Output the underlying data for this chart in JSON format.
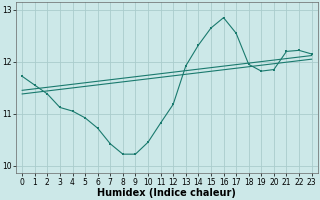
{
  "bg_color": "#cce8e8",
  "grid_color": "#aacccc",
  "line_color": "#1a7a6e",
  "xlabel": "Humidex (Indice chaleur)",
  "xlabel_fontsize": 7,
  "xlim": [
    -0.5,
    23.5
  ],
  "ylim": [
    9.85,
    13.15
  ],
  "yticks": [
    10,
    11,
    12,
    13
  ],
  "tick_fontsize": 5.5,
  "wavy_x": [
    0,
    1,
    2,
    3,
    4,
    5,
    6,
    7,
    8,
    9,
    10,
    11,
    12,
    13,
    14,
    15,
    16,
    17,
    18,
    19,
    20,
    21,
    22,
    23
  ],
  "wavy_y": [
    11.72,
    11.55,
    11.38,
    11.12,
    11.05,
    10.92,
    10.72,
    10.42,
    10.22,
    10.22,
    10.45,
    10.82,
    11.18,
    11.92,
    12.32,
    12.65,
    12.85,
    12.55,
    11.95,
    11.82,
    11.85,
    12.2,
    12.22,
    12.15
  ],
  "ref_line1_x": [
    0,
    23
  ],
  "ref_line1_y": [
    11.38,
    12.05
  ],
  "ref_line2_x": [
    0,
    23
  ],
  "ref_line2_y": [
    11.45,
    12.12
  ],
  "lw": 0.8,
  "marker_size": 1.8
}
